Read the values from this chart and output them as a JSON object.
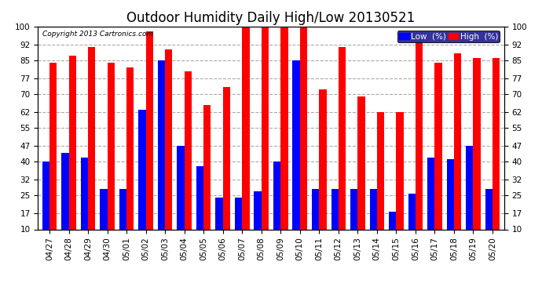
{
  "title": "Outdoor Humidity Daily High/Low 20130521",
  "copyright": "Copyright 2013 Cartronics.com",
  "legend_low_label": "Low  (%)",
  "legend_high_label": "High  (%)",
  "dates": [
    "04/27",
    "04/28",
    "04/29",
    "04/30",
    "05/01",
    "05/02",
    "05/03",
    "05/04",
    "05/05",
    "05/06",
    "05/07",
    "05/08",
    "05/09",
    "05/10",
    "05/11",
    "05/12",
    "05/13",
    "05/14",
    "05/15",
    "05/16",
    "05/17",
    "05/18",
    "05/19",
    "05/20"
  ],
  "high_values": [
    84,
    87,
    91,
    84,
    82,
    98,
    90,
    80,
    65,
    73,
    100,
    100,
    100,
    100,
    72,
    91,
    69,
    62,
    62,
    93,
    84,
    88,
    86,
    86
  ],
  "low_values": [
    40,
    44,
    42,
    28,
    28,
    63,
    85,
    47,
    38,
    24,
    24,
    27,
    40,
    85,
    28,
    28,
    28,
    28,
    18,
    26,
    42,
    41,
    47,
    28
  ],
  "high_color": "#ff0000",
  "low_color": "#0000ff",
  "bg_color": "#ffffff",
  "grid_color": "#aaaaaa",
  "yticks": [
    10,
    17,
    25,
    32,
    40,
    47,
    55,
    62,
    70,
    77,
    85,
    92,
    100
  ],
  "ymin": 10,
  "ymax": 100,
  "bar_width": 0.38,
  "title_fontsize": 12,
  "tick_fontsize": 7.5,
  "legend_fontsize": 7.5
}
